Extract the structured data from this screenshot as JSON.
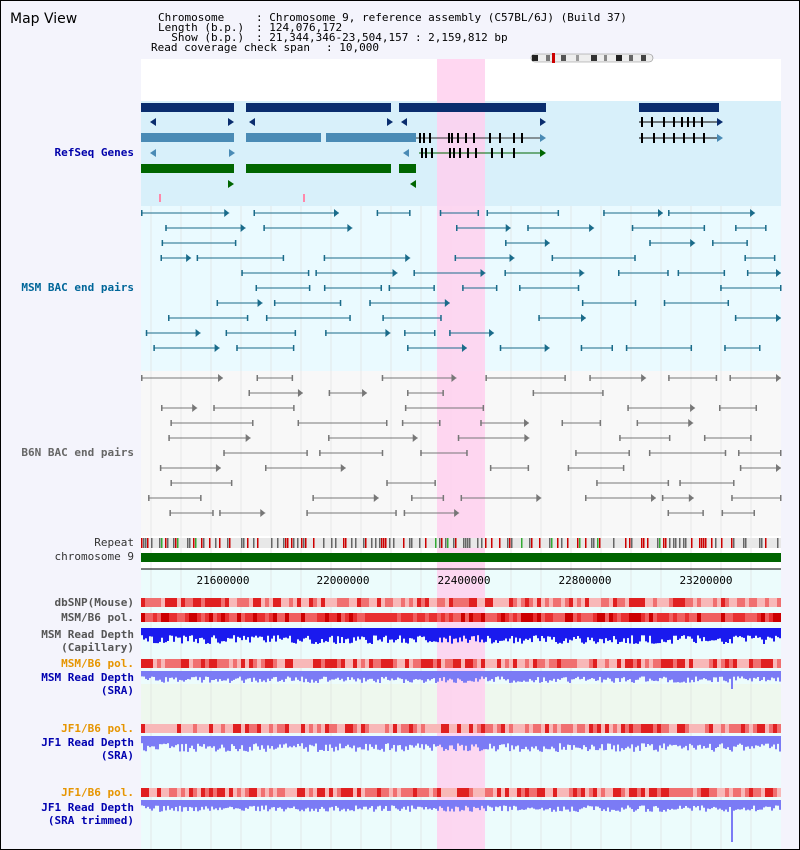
{
  "title": "Map View",
  "info": {
    "chromosome_key": "Chromosome   ",
    "chromosome_value": ": Chromosome 9, reference assembly (C57BL/6J) (Build 37)",
    "length_key": "Length (b.p.)",
    "length_value": ": 124,076,172",
    "show_key": "  Show (b.p.)",
    "show_value": ": 21,344,346-23,504,157 : 2,159,812 bp",
    "coverage_key": "Read coverage check span",
    "coverage_value": ": 10,000"
  },
  "tracks": {
    "refseq": "RefSeq Genes",
    "msm_bac": "MSM BAC end pairs",
    "b6n_bac": "B6N BAC end pairs",
    "repeat": "Repeat",
    "chromosome": "chromosome 9",
    "dbsnp": "dbSNP(Mouse)",
    "msm_b6_pol": "MSM/B6 pol.",
    "msm_depth_cap_1": "MSM Read Depth",
    "msm_depth_cap_2": "(Capillary)",
    "msm_b6_pol_sra": "MSM/B6 pol.",
    "msm_depth_sra_1": "MSM Read Depth",
    "msm_depth_sra_2": "(SRA)",
    "jf1_b6_pol_1": "JF1/B6 pol.",
    "jf1_depth_1": "JF1 Read Depth",
    "jf1_depth_1b": "(SRA)",
    "jf1_b6_pol_2": "JF1/B6 pol.",
    "jf1_depth_2": "JF1 Read Depth",
    "jf1_depth_2b": "(SRA trimmed)"
  },
  "axis": {
    "ticks": [
      "21600000",
      "22000000",
      "22400000",
      "22800000",
      "23200000"
    ]
  },
  "colors": {
    "refseq_dark": "#0a2d6e",
    "refseq_mid": "#4a8bb5",
    "refseq_green": "#006600",
    "msm_bac": "#1a6b8a",
    "b6n_bac": "#777777",
    "highlight": "#ffccee",
    "depth_blue": "#1a1aee",
    "depth_light": "#7b7bf5"
  }
}
